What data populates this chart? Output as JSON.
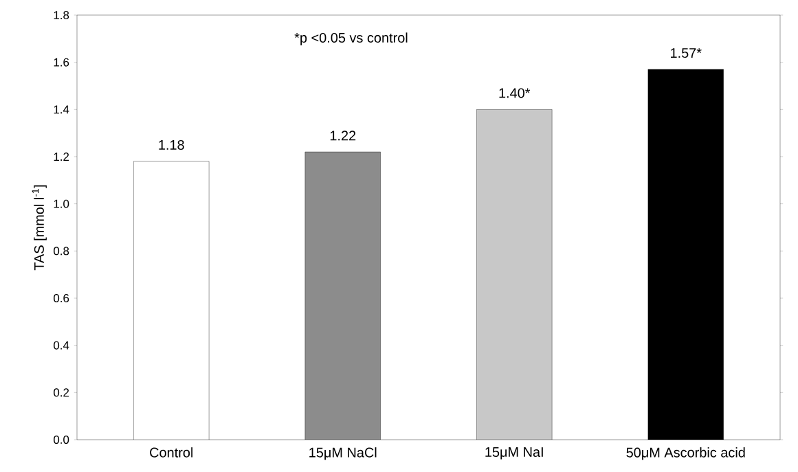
{
  "chart_data": {
    "type": "bar",
    "ylabel": "TAS [mmol l$^{-1}$]",
    "categories": [
      "Control",
      "15μM NaCl",
      "15μM NaI",
      "50μM Ascorbic acid"
    ],
    "values": [
      1.18,
      1.22,
      1.4,
      1.57
    ],
    "colors": [
      "#ffffff",
      "#8c8c8c",
      "#c8c8c8",
      "#000000"
    ],
    "value_labels": [
      "1.18",
      "1.22",
      "1.40*",
      "1.57*"
    ],
    "ylim": [
      0,
      1.8
    ],
    "yticks": [
      {
        "value": 0,
        "label": "0.0"
      },
      {
        "value": 0.2,
        "label": "0.2"
      },
      {
        "value": 0.4,
        "label": "0.4"
      },
      {
        "value": 0.6,
        "label": "0.6"
      },
      {
        "value": 0.8,
        "label": "0.8"
      },
      {
        "value": 1.0,
        "label": "1.0"
      },
      {
        "value": 1.2,
        "label": "1.2"
      },
      {
        "value": 1.4,
        "label": "1.4"
      },
      {
        "value": 1.6,
        "label": "1.6"
      },
      {
        "value": 1.8,
        "label": "1.8"
      }
    ],
    "annotations": [
      "*p <0.05 vs control"
    ],
    "grid": false
  }
}
